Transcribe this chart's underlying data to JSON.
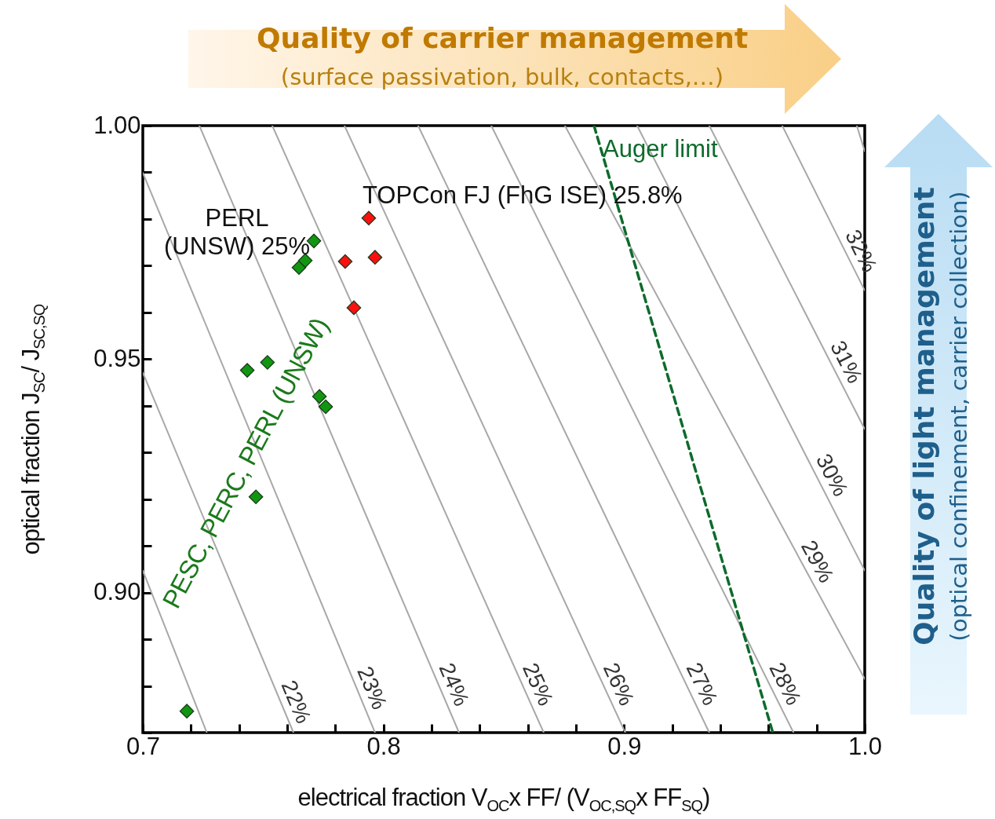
{
  "chart_data": {
    "type": "scatter",
    "xlabel": "electrical fraction V$_{OC}$x FF/ (V$_{OC,SQ}$x FF$_{SQ}$)",
    "ylabel": "optical fraction J$_{SC}$/ J$_{SC,SQ}$",
    "xlim": [
      0.7,
      1.0
    ],
    "ylim": [
      0.87,
      1.0
    ],
    "xticks": [
      0.7,
      {
        "value": 0.72,
        "label": null
      },
      {
        "value": 0.74,
        "label": null
      },
      {
        "value": 0.76,
        "label": null
      },
      {
        "value": 0.78,
        "label": null
      },
      0.8,
      {
        "value": 0.82,
        "label": null
      },
      {
        "value": 0.84,
        "label": null
      },
      {
        "value": 0.86,
        "label": null
      },
      {
        "value": 0.88,
        "label": null
      },
      0.9,
      {
        "value": 0.92,
        "label": null
      },
      {
        "value": 0.94,
        "label": null
      },
      {
        "value": 0.96,
        "label": null
      },
      {
        "value": 0.98,
        "label": null
      },
      {
        "value": 1.0,
        "label": "1.0"
      }
    ],
    "yticks": [
      {
        "value": 0.87,
        "label": null
      },
      {
        "value": 0.88,
        "label": null
      },
      {
        "value": 0.89,
        "label": null
      },
      {
        "value": 0.9,
        "label": "0.90"
      },
      {
        "value": 0.91,
        "label": null
      },
      {
        "value": 0.92,
        "label": null
      },
      {
        "value": 0.93,
        "label": null
      },
      {
        "value": 0.94,
        "label": null
      },
      0.95,
      {
        "value": 0.96,
        "label": null
      },
      {
        "value": 0.97,
        "label": null
      },
      {
        "value": 0.98,
        "label": null
      },
      {
        "value": 0.99,
        "label": null
      },
      {
        "value": 1.0,
        "label": "1.00"
      }
    ],
    "grid": false,
    "series": [
      {
        "type": "line",
        "color": "#a8a8a8",
        "x": [
          0.7,
          0.7266
        ],
        "values": [
          0.9047,
          0.87
        ]
      },
      {
        "name": "22%",
        "type": "line",
        "color": "#a8a8a8",
        "x": [
          0.7,
          0.7626
        ],
        "values": [
          0.9471,
          0.87
        ]
      },
      {
        "name": "23%",
        "type": "line",
        "color": "#a8a8a8",
        "x": [
          0.7,
          0.7965
        ],
        "values": [
          0.9899,
          0.87
        ]
      },
      {
        "name": "24%",
        "type": "line",
        "color": "#a8a8a8",
        "x": [
          0.7235,
          0.8314
        ],
        "values": [
          1.0,
          0.87
        ]
      },
      {
        "name": "25%",
        "type": "line",
        "color": "#a8a8a8",
        "x": [
          0.7538,
          0.8666
        ],
        "values": [
          1.0,
          0.87
        ]
      },
      {
        "name": "26%",
        "type": "line",
        "color": "#a8a8a8",
        "x": [
          0.7838,
          0.9005
        ],
        "values": [
          1.0,
          0.87
        ]
      },
      {
        "name": "27%",
        "type": "line",
        "color": "#a8a8a8",
        "x": [
          0.8144,
          0.9354
        ],
        "values": [
          1.0,
          0.87
        ]
      },
      {
        "name": "28%",
        "type": "line",
        "color": "#a8a8a8",
        "x": [
          0.8448,
          0.9704
        ],
        "values": [
          1.0,
          0.87
        ]
      },
      {
        "name": "29%",
        "type": "line",
        "color": "#a8a8a8",
        "x": [
          0.8754,
          1.0
        ],
        "values": [
          1.0,
          0.8815
        ]
      },
      {
        "name": "30%",
        "type": "line",
        "color": "#a8a8a8",
        "x": [
          0.9054,
          1.0
        ],
        "values": [
          1.0,
          0.9047
        ]
      },
      {
        "name": "31%",
        "type": "line",
        "color": "#a8a8a8",
        "x": [
          0.9354,
          1.0
        ],
        "values": [
          1.0,
          0.935
        ]
      },
      {
        "name": "32%",
        "type": "line",
        "color": "#a8a8a8",
        "x": [
          0.9657,
          1.0
        ],
        "values": [
          1.0,
          0.9647
        ]
      },
      {
        "type": "line",
        "color": "#a8a8a8",
        "x": [
          0.9967,
          1.0
        ],
        "values": [
          1.0,
          0.9945
        ]
      },
      {
        "name": "Auger limit",
        "type": "line",
        "color": "#0d6b2b",
        "line_style": "dashed",
        "x": [
          0.8875,
          0.9618
        ],
        "values": [
          1.0,
          0.87
        ]
      },
      {
        "marker": "diamond",
        "color": "#119611",
        "x": [
          0.7183,
          0.7434,
          0.7518,
          0.747,
          0.7734,
          0.776,
          0.7649,
          0.7675,
          0.7711
        ],
        "values": [
          0.8746,
          0.9476,
          0.9493,
          0.9205,
          0.942,
          0.9398,
          0.9696,
          0.9711,
          0.9753
        ]
      },
      {
        "marker": "diamond",
        "color": "#ff1010",
        "x": [
          0.7841,
          0.7965,
          0.7877,
          0.7939
        ],
        "values": [
          0.9709,
          0.9718,
          0.961,
          0.9802
        ]
      }
    ],
    "annotations": [
      "Quality of carrier management",
      "(surface passivation, bulk, contacts,…)",
      "Quality of light management",
      "(optical confinement, carrier collection)",
      {
        "text": "PERL\n(UNSW) 25%",
        "x": 0.7711,
        "y": 0.9753
      },
      {
        "text": "TOPCon FJ (FhG ISE) 25.8%",
        "x": 0.7939,
        "y": 0.9802
      },
      "PESC, PERC, PERL (UNSW)"
    ]
  }
}
